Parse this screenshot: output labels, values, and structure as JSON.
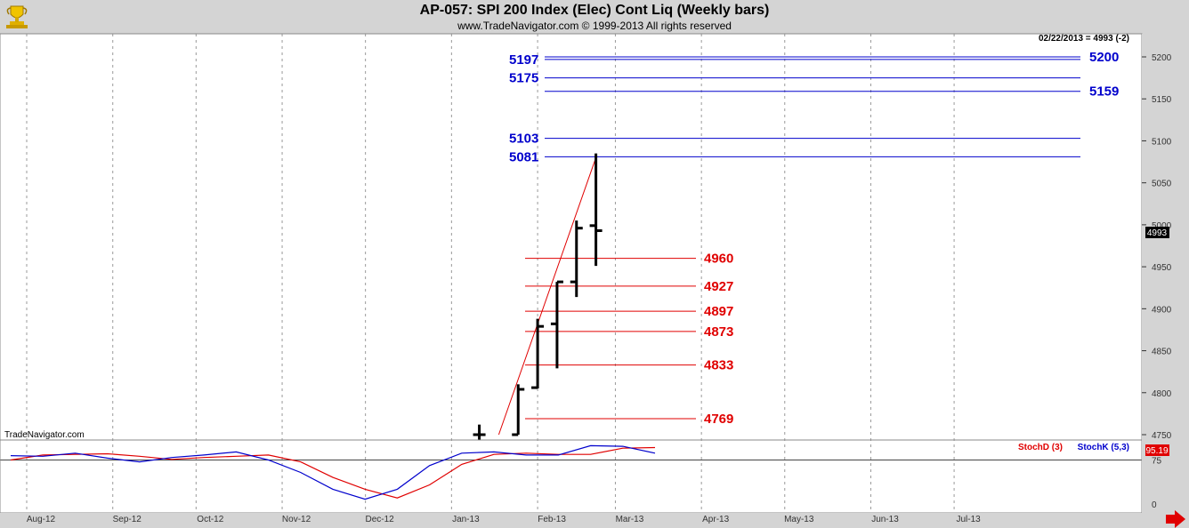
{
  "header": {
    "title": "AP-057:  SPI 200 Index (Elec) Cont Liq  (Weekly bars)",
    "copyright": "www.TradeNavigator.com © 1999-2013 All rights reserved"
  },
  "last_bar_label": "02/22/2013 = 4993 (-2)",
  "current_price_tag": "4993",
  "watermark": "TradeNavigator.com",
  "legend": {
    "stochd": "StochD (3)",
    "stochk": "StochK (5,3)"
  },
  "stoch_tag": "95.19",
  "colors": {
    "blue_levels": "#0000cc",
    "red_levels": "#e00000",
    "stochd": "#e00000",
    "stochk": "#0000cc",
    "bars": "#000000"
  },
  "chart_data": [
    {
      "type": "ohlc",
      "x_axis": {
        "ticks": [
          "Aug-12",
          "Sep-12",
          "Oct-12",
          "Nov-12",
          "Dec-12",
          "Jan-13",
          "Feb-13",
          "Mar-13",
          "Apr-13",
          "May-13",
          "Jun-13",
          "Jul-13"
        ]
      },
      "y_axis": {
        "range": [
          4738,
          5215
        ],
        "ticks": [
          4750,
          4800,
          4850,
          4900,
          4950,
          5000,
          5050,
          5100,
          5150,
          5200
        ]
      },
      "grid": true,
      "bars": [
        {
          "date": "2013-01-11",
          "open": 4750,
          "high": 4762,
          "low": 4740,
          "close": 4750
        },
        {
          "date": "2013-01-25",
          "open": 4750,
          "high": 4810,
          "low": 4750,
          "close": 4804
        },
        {
          "date": "2013-02-01",
          "open": 4806,
          "high": 4888,
          "low": 4805,
          "close": 4879
        },
        {
          "date": "2013-02-08",
          "open": 4882,
          "high": 4932,
          "low": 4829,
          "close": 4932
        },
        {
          "date": "2013-02-15",
          "open": 4932,
          "high": 5005,
          "low": 4914,
          "close": 4996
        },
        {
          "date": "2013-02-22",
          "open": 4999,
          "high": 5085,
          "low": 4951,
          "close": 4993
        }
      ],
      "trend_line": {
        "from": {
          "date": "2013-01-18",
          "value": 4750
        },
        "to": {
          "date": "2013-02-22",
          "value": 5080
        }
      },
      "resistance_levels": [
        {
          "value": 5197,
          "side": "left"
        },
        {
          "value": 5200,
          "side": "right"
        },
        {
          "value": 5175,
          "side": "left"
        },
        {
          "value": 5159,
          "side": "right"
        },
        {
          "value": 5103,
          "side": "left"
        },
        {
          "value": 5081,
          "side": "left"
        }
      ],
      "support_levels": [
        4960,
        4927,
        4897,
        4873,
        4833,
        4769
      ]
    },
    {
      "type": "line",
      "indicator": "stochastic",
      "y_axis": {
        "range": [
          0,
          100
        ],
        "ticks": [
          0,
          75
        ]
      },
      "series": [
        {
          "name": "StochD (3)",
          "values": [
            75,
            83,
            84,
            85,
            81,
            76,
            79,
            81,
            83,
            72,
            47,
            28,
            14,
            35,
            68,
            84,
            86,
            84,
            84,
            94,
            95
          ]
        },
        {
          "name": "StochK (5,3)",
          "values": [
            82,
            81,
            86,
            78,
            72,
            79,
            83,
            88,
            75,
            55,
            28,
            12,
            28,
            66,
            86,
            88,
            83,
            83,
            98,
            97,
            86
          ]
        }
      ],
      "horizontal_line": 75
    }
  ]
}
